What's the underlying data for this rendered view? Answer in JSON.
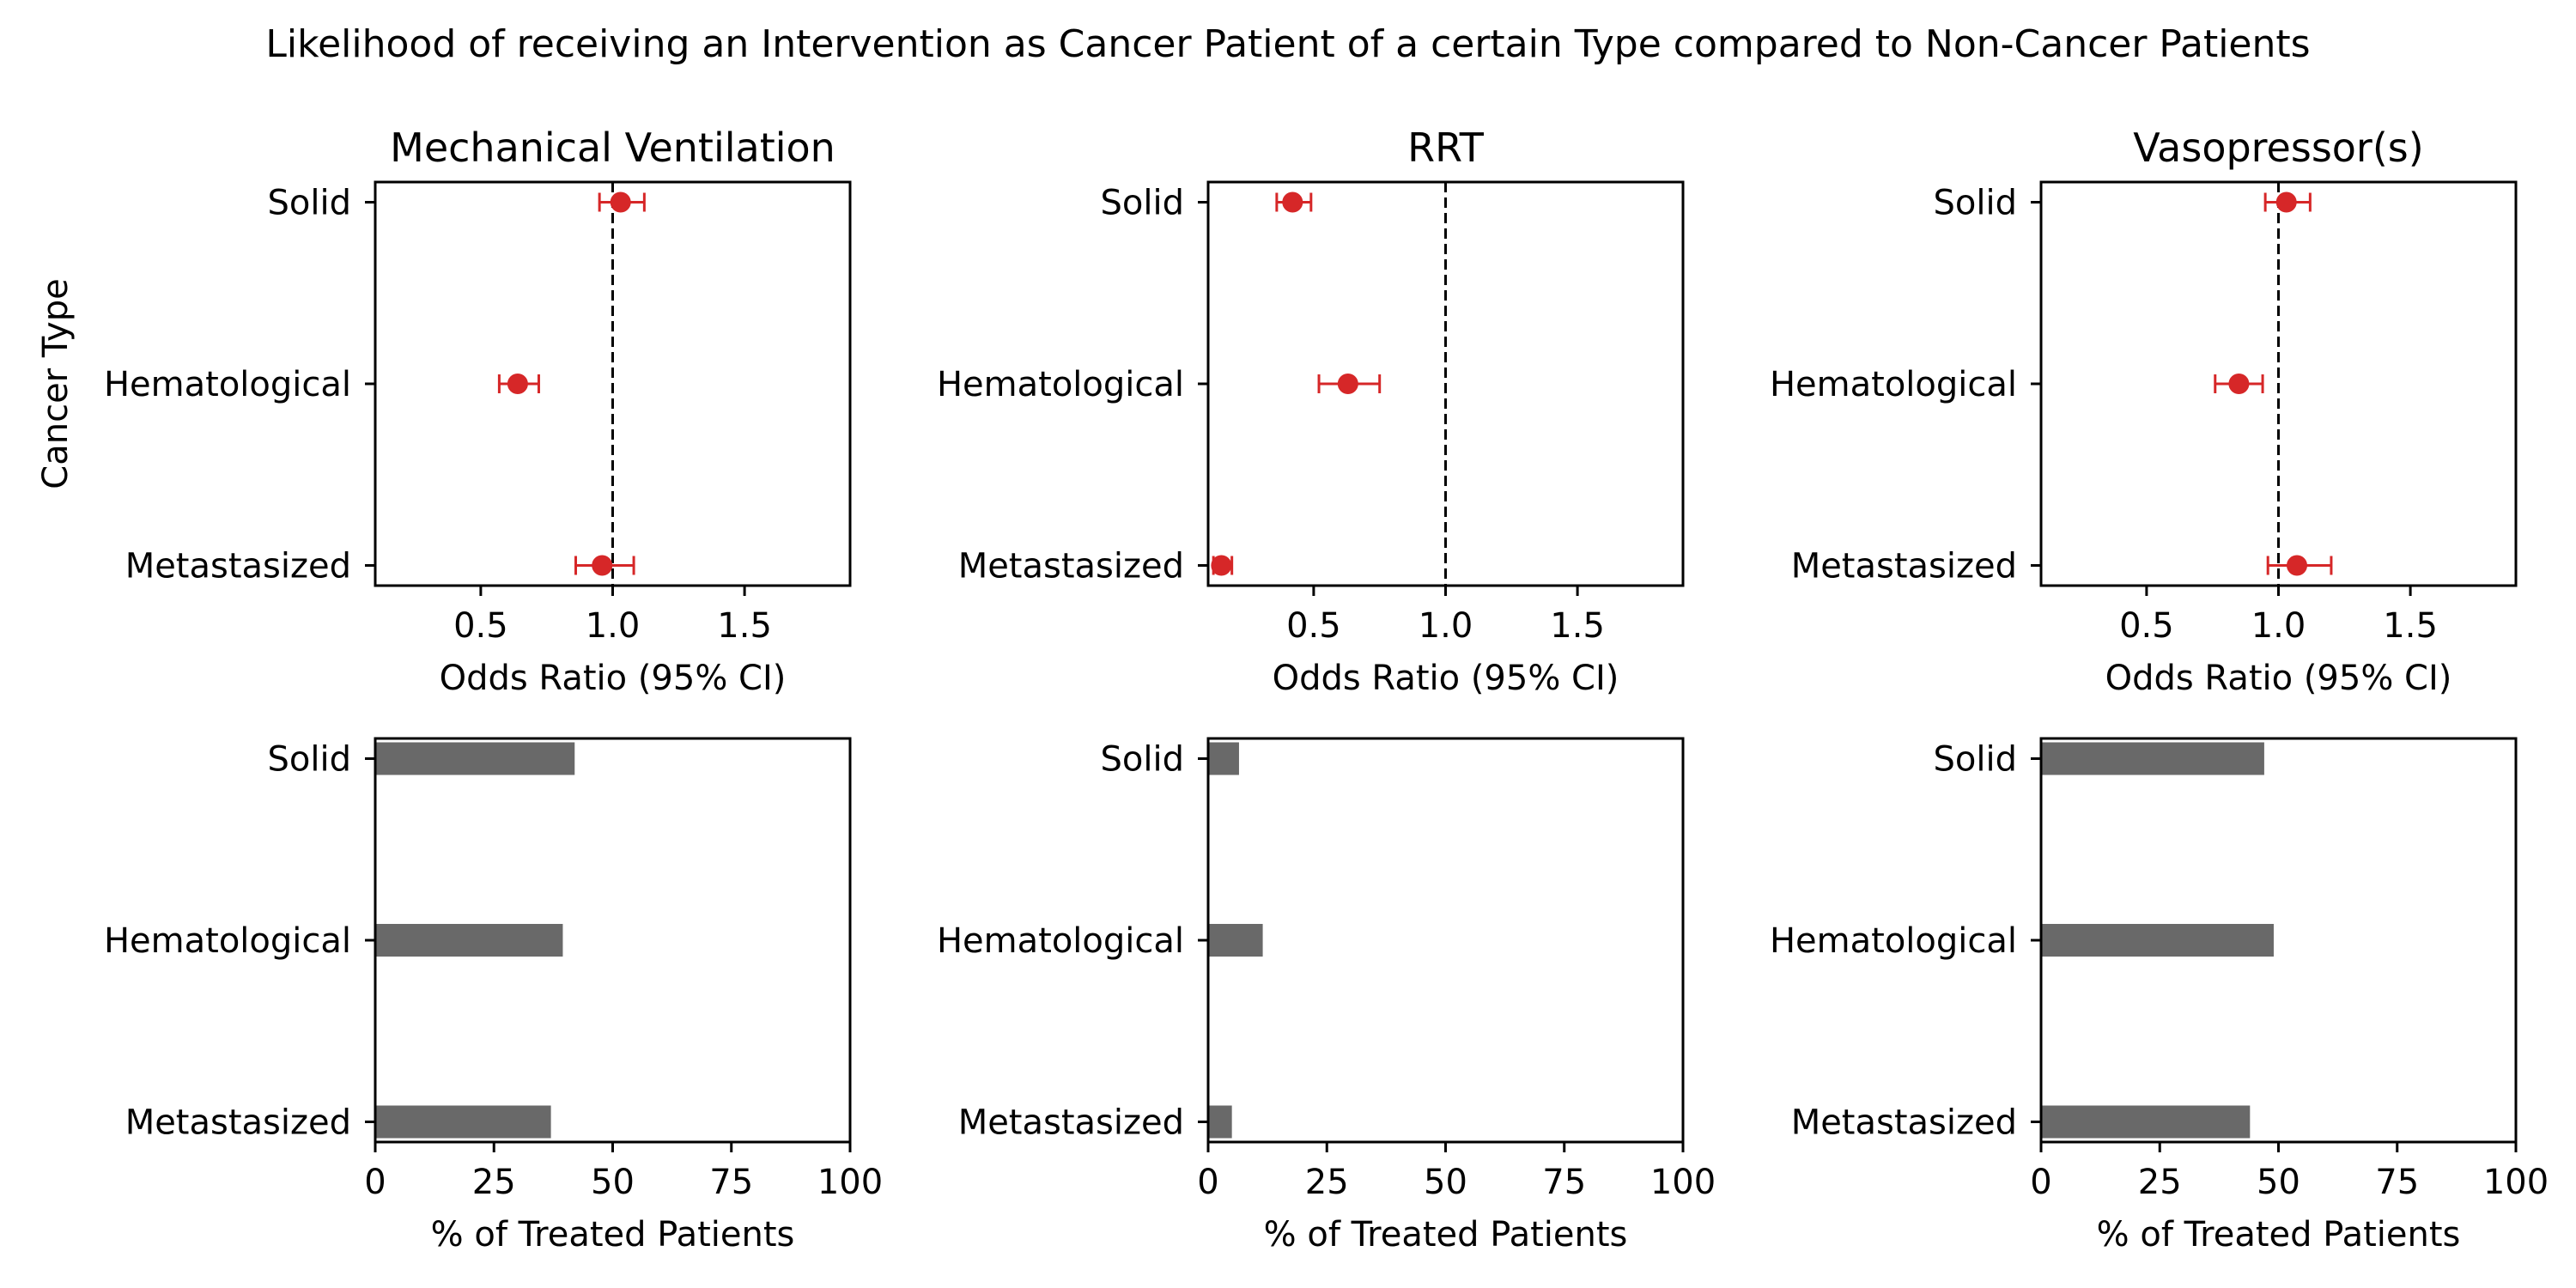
{
  "figure": {
    "title": "Likelihood of receiving an Intervention as Cancer Patient of a certain Type compared to Non-Cancer Patients"
  },
  "colors": {
    "marker": "#d62728",
    "bar": "#696969",
    "reference_line": "#000000"
  },
  "chart_data": [
    {
      "type": "scatter",
      "panel": "forest",
      "title": "Mechanical Ventilation",
      "xlabel": "Odds Ratio (95% CI)",
      "ylabel": "Cancer Type",
      "xlim": [
        0.1,
        1.9
      ],
      "xticks": [
        "0.5",
        "1.0",
        "1.5"
      ],
      "categories": [
        "Solid",
        "Hematological",
        "Metastasized"
      ],
      "points": [
        {
          "category": "Solid",
          "or": 1.03,
          "ci": [
            0.95,
            1.12
          ]
        },
        {
          "category": "Hematological",
          "or": 0.64,
          "ci": [
            0.57,
            0.72
          ]
        },
        {
          "category": "Metastasized",
          "or": 0.96,
          "ci": [
            0.86,
            1.08
          ]
        }
      ],
      "reference_line": 1.0,
      "grid": false
    },
    {
      "type": "scatter",
      "panel": "forest",
      "title": "RRT",
      "xlabel": "Odds Ratio (95% CI)",
      "ylabel": "",
      "xlim": [
        0.1,
        1.9
      ],
      "xticks": [
        "0.5",
        "1.0",
        "1.5"
      ],
      "categories": [
        "Solid",
        "Hematological",
        "Metastasized"
      ],
      "points": [
        {
          "category": "Solid",
          "or": 0.42,
          "ci": [
            0.36,
            0.49
          ]
        },
        {
          "category": "Hematological",
          "or": 0.63,
          "ci": [
            0.52,
            0.75
          ]
        },
        {
          "category": "Metastasized",
          "or": 0.15,
          "ci": [
            0.12,
            0.19
          ]
        }
      ],
      "reference_line": 1.0,
      "grid": false
    },
    {
      "type": "scatter",
      "panel": "forest",
      "title": "Vasopressor(s)",
      "xlabel": "Odds Ratio (95% CI)",
      "ylabel": "",
      "xlim": [
        0.1,
        1.9
      ],
      "xticks": [
        "0.5",
        "1.0",
        "1.5"
      ],
      "categories": [
        "Solid",
        "Hematological",
        "Metastasized"
      ],
      "points": [
        {
          "category": "Solid",
          "or": 1.03,
          "ci": [
            0.95,
            1.12
          ]
        },
        {
          "category": "Hematological",
          "or": 0.85,
          "ci": [
            0.76,
            0.94
          ]
        },
        {
          "category": "Metastasized",
          "or": 1.07,
          "ci": [
            0.96,
            1.2
          ]
        }
      ],
      "reference_line": 1.0,
      "grid": false
    },
    {
      "type": "bar",
      "orientation": "horizontal",
      "title": "",
      "xlabel": "% of Treated Patients",
      "ylabel": "",
      "xlim": [
        0,
        100
      ],
      "xticks": [
        "0",
        "25",
        "50",
        "75",
        "100"
      ],
      "categories": [
        "Solid",
        "Hematological",
        "Metastasized"
      ],
      "values": [
        42,
        39.5,
        37
      ],
      "grid": false
    },
    {
      "type": "bar",
      "orientation": "horizontal",
      "title": "",
      "xlabel": "% of Treated Patients",
      "ylabel": "",
      "xlim": [
        0,
        100
      ],
      "xticks": [
        "0",
        "25",
        "50",
        "75",
        "100"
      ],
      "categories": [
        "Solid",
        "Hematological",
        "Metastasized"
      ],
      "values": [
        6.5,
        11.5,
        5
      ],
      "grid": false
    },
    {
      "type": "bar",
      "orientation": "horizontal",
      "title": "",
      "xlabel": "% of Treated Patients",
      "ylabel": "",
      "xlim": [
        0,
        100
      ],
      "xticks": [
        "0",
        "25",
        "50",
        "75",
        "100"
      ],
      "categories": [
        "Solid",
        "Hematological",
        "Metastasized"
      ],
      "values": [
        47,
        49,
        44
      ],
      "grid": false
    }
  ]
}
